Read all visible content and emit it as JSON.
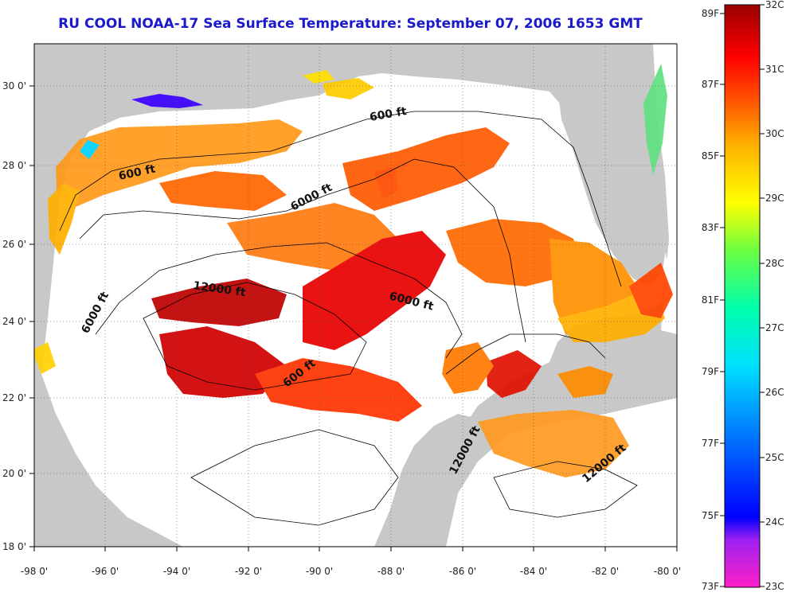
{
  "title": "RU COOL  NOAA-17  Sea Surface Temperature:  September 07, 2006 1653 GMT",
  "colors": {
    "land": "#c8c8c8",
    "ocean_nodata": "#ffffff",
    "title": "#1a1acc"
  },
  "map": {
    "lon_ticks": [
      "-98 0'",
      "-96 0'",
      "-94 0'",
      "-92 0'",
      "-90 0'",
      "-88 0'",
      "-86 0'",
      "-84 0'",
      "-82 0'",
      "-80 0'"
    ],
    "lat_ticks": [
      "18 0'",
      "20 0'",
      "22 0'",
      "24 0'",
      "26 0'",
      "28 0'",
      "30 0'"
    ],
    "isobath_labels": [
      "600 ft",
      "600 ft",
      "6000 ft",
      "12000 ft",
      "6000 ft",
      "6000 ft",
      "600 ft",
      "12000 ft",
      "12000 ft"
    ]
  },
  "colorbar": {
    "fahrenheit": [
      "89F",
      "87F",
      "85F",
      "83F",
      "81F",
      "79F",
      "77F",
      "75F",
      "73F"
    ],
    "celsius": [
      "32C",
      "31C",
      "30C",
      "29C",
      "28C",
      "27C",
      "26C",
      "25C",
      "24C",
      "23C"
    ],
    "palette": [
      "#ff1fc8",
      "#a020f0",
      "#0000ff",
      "#0088ff",
      "#00e0ff",
      "#00ffaa",
      "#70ff40",
      "#ffff00",
      "#ffb000",
      "#ff5a00",
      "#ff0000",
      "#9a0000"
    ]
  }
}
